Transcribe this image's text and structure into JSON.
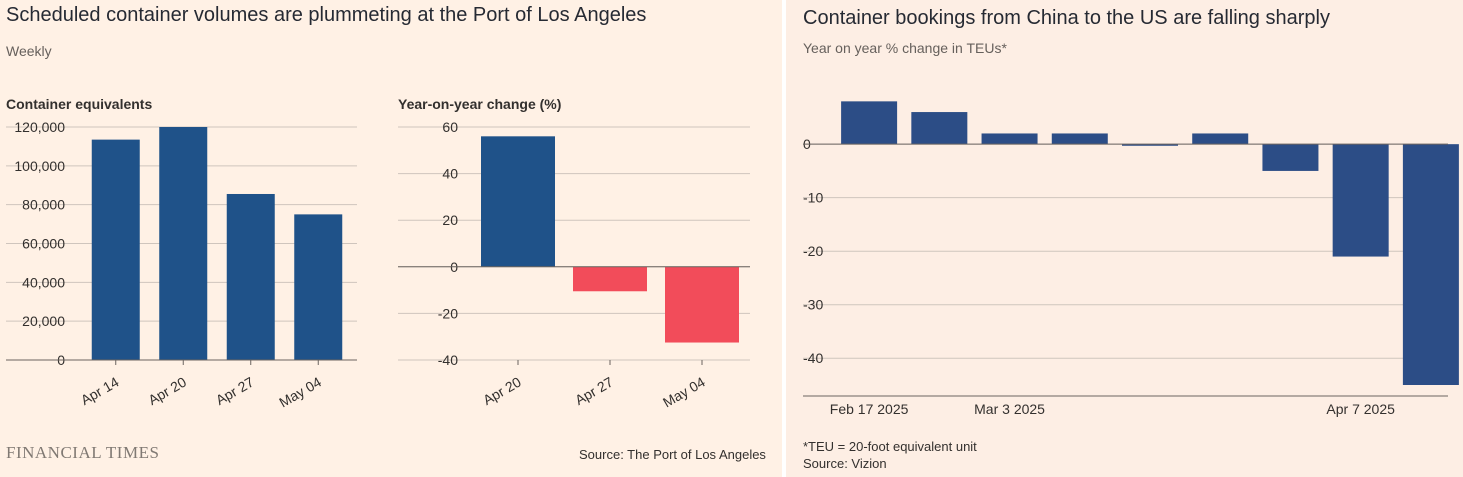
{
  "left_panel": {
    "title": "Scheduled container volumes are plummeting at the Port of Los Angeles",
    "subtitle": "Weekly",
    "brand": "FINANCIAL TIMES",
    "source": "Source: The Port of Los Angeles"
  },
  "right_panel": {
    "title": "Container bookings from China to the US are falling sharply",
    "subtitle": "Year on year % change in TEUs*",
    "footnote": "*TEU = 20-foot equivalent unit",
    "source": "Source: Vizion"
  },
  "colors": {
    "bar_blue": "#1f5289",
    "bar_red": "#f24c5a",
    "bar_navy": "#2c4d86",
    "gridline": "#cfc5bd",
    "zero_line": "#6b6460"
  },
  "chart_data": [
    {
      "type": "bar",
      "title": "",
      "ylabel": "Container equivalents",
      "categories": [
        "Apr 14",
        "Apr 20",
        "Apr 27",
        "May 04"
      ],
      "values": [
        113500,
        120000,
        85500,
        75000
      ],
      "ylim": [
        0,
        120000
      ],
      "yticks": [
        0,
        20000,
        40000,
        60000,
        80000,
        100000,
        120000
      ],
      "ytick_labels": [
        "0",
        "20,000",
        "40,000",
        "60,000",
        "80,000",
        "100,000",
        "120,000"
      ],
      "grid": true
    },
    {
      "type": "bar",
      "title": "",
      "ylabel": "Year-on-year change (%)",
      "categories": [
        "Apr 20",
        "Apr 27",
        "May 04"
      ],
      "values": [
        56,
        -10.5,
        -32.5
      ],
      "ylim": [
        -40,
        60
      ],
      "yticks": [
        -40,
        -20,
        0,
        20,
        40,
        60
      ],
      "ytick_labels": [
        "-40",
        "-20",
        "0",
        "20",
        "40",
        "60"
      ],
      "grid": true
    },
    {
      "type": "bar",
      "title": "",
      "ylabel": "",
      "x": [
        "2025-02-17",
        "2025-02-24",
        "2025-03-03",
        "2025-03-10",
        "2025-03-17",
        "2025-03-24",
        "2025-03-31",
        "2025-04-07",
        "2025-04-14"
      ],
      "values": [
        8,
        6,
        2,
        2,
        -0.3,
        2,
        -5,
        -21,
        -45
      ],
      "xtick_labels": [
        {
          "index": 0,
          "label": "Feb 17 2025"
        },
        {
          "index": 2,
          "label": "Mar 3 2025"
        },
        {
          "index": 7,
          "label": "Apr 7 2025"
        }
      ],
      "ylim": [
        -45,
        9
      ],
      "yticks": [
        -40,
        -30,
        -20,
        -10,
        0
      ],
      "ytick_labels": [
        "-40",
        "-30",
        "-20",
        "-10",
        "0"
      ],
      "grid": true
    }
  ]
}
